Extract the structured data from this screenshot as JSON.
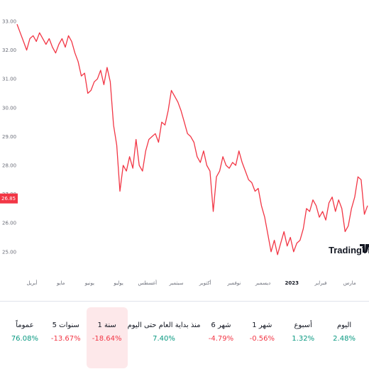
{
  "chart_data": {
    "type": "line",
    "y_ticks": [
      "33.00",
      "32.00",
      "31.00",
      "30.00",
      "29.00",
      "28.00",
      "27.00",
      "26.00",
      "25.00"
    ],
    "y_tick_values": [
      33,
      32,
      31,
      30,
      29,
      28,
      27,
      26,
      25
    ],
    "ylim": [
      24.0,
      33.4
    ],
    "x_ticks": [
      "أبريل",
      "مايو",
      "يونيو",
      "يوليو",
      "أغسطس",
      "سبتمبر",
      "أكتوبر",
      "نوفمبر",
      "ديسمبر",
      "2023",
      "فبراير",
      "مارس"
    ],
    "x_tick_bold": "2023",
    "grid": false,
    "series": [
      {
        "color": "#f23645",
        "values": [
          32.9,
          32.6,
          32.3,
          32.0,
          32.4,
          32.5,
          32.3,
          32.6,
          32.4,
          32.2,
          32.4,
          32.1,
          31.9,
          32.2,
          32.4,
          32.1,
          32.5,
          32.3,
          31.9,
          31.6,
          31.1,
          31.2,
          30.5,
          30.6,
          30.9,
          31.0,
          31.3,
          30.8,
          31.4,
          30.9,
          29.4,
          28.7,
          27.1,
          28.0,
          27.8,
          28.3,
          27.9,
          28.9,
          28.0,
          27.8,
          28.5,
          28.9,
          29.0,
          29.1,
          28.8,
          29.5,
          29.4,
          29.9,
          30.6,
          30.4,
          30.2,
          29.9,
          29.5,
          29.1,
          29.0,
          28.8,
          28.3,
          28.1,
          28.5,
          28.0,
          27.8,
          26.4,
          27.6,
          27.8,
          28.3,
          28.0,
          27.9,
          28.1,
          28.0,
          28.5,
          28.1,
          27.8,
          27.5,
          27.4,
          27.1,
          27.2,
          26.6,
          26.2,
          25.6,
          25.0,
          25.4,
          24.9,
          25.3,
          25.7,
          25.2,
          25.5,
          25.0,
          25.3,
          25.4,
          25.8,
          26.5,
          26.4,
          26.8,
          26.6,
          26.2,
          26.4,
          26.1,
          26.7,
          26.9,
          26.4,
          26.8,
          26.5,
          25.7,
          25.9,
          26.5,
          26.9,
          27.6,
          27.5,
          26.3,
          26.6
        ]
      }
    ],
    "last_value_label": "26.85"
  },
  "logo": {
    "text": "TradingView"
  },
  "periods": [
    {
      "label": "اليوم",
      "value": "2.48%",
      "trend": "pos",
      "active": false
    },
    {
      "label": "أسبوع",
      "value": "1.32%",
      "trend": "pos",
      "active": false
    },
    {
      "label": "1 شهر",
      "value": "-0.56%",
      "trend": "neg",
      "active": false
    },
    {
      "label": "6 شهر",
      "value": "-4.79%",
      "trend": "neg",
      "active": false
    },
    {
      "label": "منذ بداية العام حتى اليوم",
      "value": "7.40%",
      "trend": "pos",
      "active": false
    },
    {
      "label": "1 سنة",
      "value": "-18.64%",
      "trend": "neg",
      "active": true
    },
    {
      "label": "5 سنوات",
      "value": "-13.67%",
      "trend": "neg",
      "active": false
    },
    {
      "label": "عموماً",
      "value": "76.08%",
      "trend": "pos",
      "active": false
    }
  ]
}
